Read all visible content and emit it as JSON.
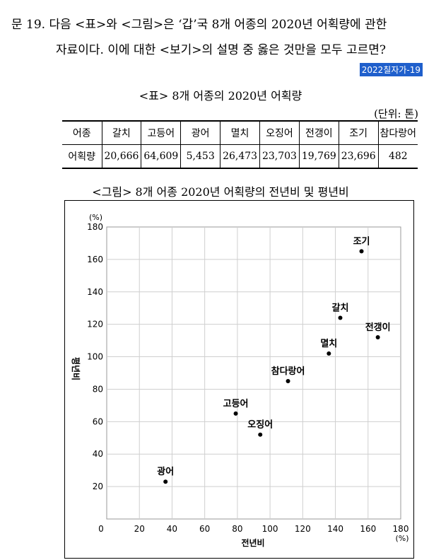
{
  "question": {
    "line1": "문 19. 다음 <표>와 <그림>은 ‘갑’국 8개 어종의 2020년 어획량에 관한",
    "line2": "자료이다. 이에 대한 <보기>의 설명 중 옳은 것만을 모두 고르면?",
    "badge": "2022칠자가-19"
  },
  "table": {
    "title": "<표> 8개 어종의 2020년 어획량",
    "unit": "(단위: 톤)",
    "header_label": "어종",
    "row_label": "어획량",
    "species": [
      "갈치",
      "고등어",
      "광어",
      "멸치",
      "오징어",
      "전갱이",
      "조기",
      "참다랑어"
    ],
    "values": [
      "20,666",
      "64,609",
      "5,453",
      "26,473",
      "23,703",
      "19,769",
      "23,696",
      "482"
    ]
  },
  "figure": {
    "title": "<그림> 8개 어종 2020년 어획량의 전년비 및 평년비"
  },
  "chart_data": {
    "type": "scatter",
    "xlabel": "전년비",
    "ylabel": "평년비",
    "x_unit": "(%)",
    "y_unit": "(%)",
    "xlim": [
      0,
      180
    ],
    "ylim": [
      0,
      180
    ],
    "x_ticks": [
      0,
      20,
      40,
      60,
      80,
      100,
      120,
      140,
      160,
      180
    ],
    "y_ticks": [
      20,
      40,
      60,
      80,
      100,
      120,
      140,
      160,
      180
    ],
    "grid": true,
    "points": [
      {
        "label": "조기",
        "x": 156,
        "y": 165
      },
      {
        "label": "갈치",
        "x": 143,
        "y": 124
      },
      {
        "label": "전갱이",
        "x": 166,
        "y": 112
      },
      {
        "label": "멸치",
        "x": 136,
        "y": 102
      },
      {
        "label": "참다랑어",
        "x": 111,
        "y": 85
      },
      {
        "label": "고등어",
        "x": 79,
        "y": 65
      },
      {
        "label": "오징어",
        "x": 94,
        "y": 52
      },
      {
        "label": "광어",
        "x": 36,
        "y": 23
      }
    ]
  }
}
